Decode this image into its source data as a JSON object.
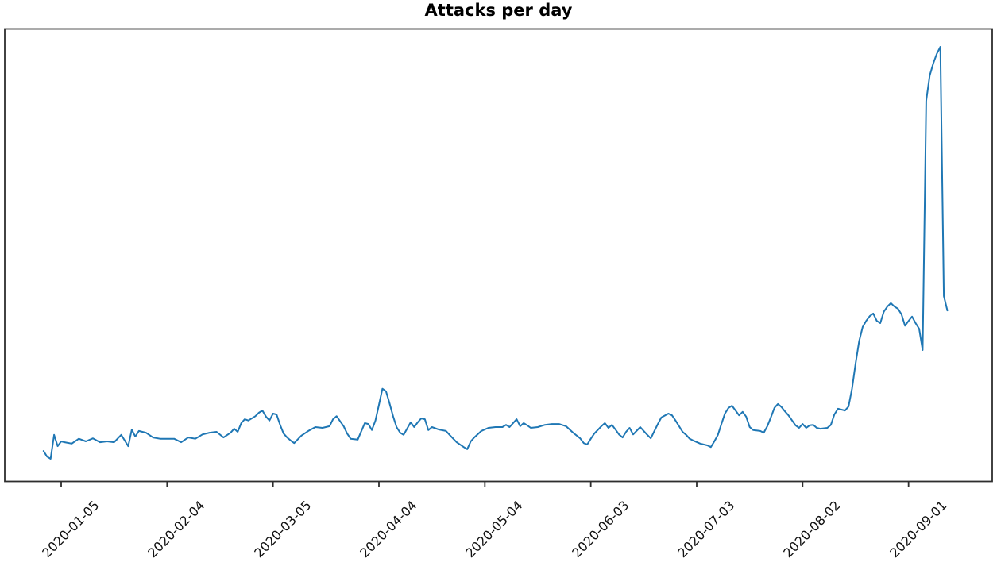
{
  "title": "Attacks per day",
  "chart_data": {
    "type": "line",
    "title": "Attacks per day",
    "xlabel": "",
    "ylabel": "",
    "grid": false,
    "legend": "none",
    "line_color": "#1f77b4",
    "axis_color": "#2e2e2e",
    "x_ticks": [
      "2020-01-05",
      "2020-02-04",
      "2020-03-05",
      "2020-04-04",
      "2020-05-04",
      "2020-06-03",
      "2020-07-03",
      "2020-08-02",
      "2020-09-01"
    ],
    "y_ticks": [],
    "ylim": [
      0,
      105
    ],
    "xlim": [
      "2019-12-19",
      "2020-09-24"
    ],
    "x_tick_rotation_deg": 45,
    "values_unit": "relative (y-axis unlabeled, peak = 100)",
    "dates": [
      "2019-12-31",
      "2020-01-01",
      "2020-01-02",
      "2020-01-03",
      "2020-01-04",
      "2020-01-05",
      "2020-01-06",
      "2020-01-08",
      "2020-01-10",
      "2020-01-12",
      "2020-01-14",
      "2020-01-16",
      "2020-01-18",
      "2020-01-20",
      "2020-01-22",
      "2020-01-23",
      "2020-01-24",
      "2020-01-25",
      "2020-01-26",
      "2020-01-27",
      "2020-01-29",
      "2020-01-31",
      "2020-02-02",
      "2020-02-04",
      "2020-02-06",
      "2020-02-08",
      "2020-02-10",
      "2020-02-12",
      "2020-02-14",
      "2020-02-16",
      "2020-02-18",
      "2020-02-20",
      "2020-02-22",
      "2020-02-23",
      "2020-02-24",
      "2020-02-25",
      "2020-02-26",
      "2020-02-27",
      "2020-02-29",
      "2020-03-01",
      "2020-03-02",
      "2020-03-03",
      "2020-03-04",
      "2020-03-05",
      "2020-03-06",
      "2020-03-07",
      "2020-03-08",
      "2020-03-09",
      "2020-03-10",
      "2020-03-11",
      "2020-03-13",
      "2020-03-15",
      "2020-03-17",
      "2020-03-19",
      "2020-03-21",
      "2020-03-22",
      "2020-03-23",
      "2020-03-25",
      "2020-03-26",
      "2020-03-27",
      "2020-03-29",
      "2020-03-31",
      "2020-04-01",
      "2020-04-02",
      "2020-04-03",
      "2020-04-04",
      "2020-04-05",
      "2020-04-06",
      "2020-04-07",
      "2020-04-08",
      "2020-04-09",
      "2020-04-10",
      "2020-04-11",
      "2020-04-13",
      "2020-04-14",
      "2020-04-15",
      "2020-04-16",
      "2020-04-17",
      "2020-04-18",
      "2020-04-19",
      "2020-04-21",
      "2020-04-23",
      "2020-04-24",
      "2020-04-26",
      "2020-04-28",
      "2020-04-29",
      "2020-04-30",
      "2020-05-01",
      "2020-05-03",
      "2020-05-05",
      "2020-05-07",
      "2020-05-09",
      "2020-05-10",
      "2020-05-11",
      "2020-05-13",
      "2020-05-14",
      "2020-05-15",
      "2020-05-16",
      "2020-05-17",
      "2020-05-19",
      "2020-05-21",
      "2020-05-23",
      "2020-05-25",
      "2020-05-27",
      "2020-05-29",
      "2020-05-31",
      "2020-06-01",
      "2020-06-02",
      "2020-06-03",
      "2020-06-04",
      "2020-06-06",
      "2020-06-07",
      "2020-06-08",
      "2020-06-09",
      "2020-06-10",
      "2020-06-11",
      "2020-06-12",
      "2020-06-13",
      "2020-06-14",
      "2020-06-15",
      "2020-06-17",
      "2020-06-18",
      "2020-06-19",
      "2020-06-20",
      "2020-06-22",
      "2020-06-23",
      "2020-06-25",
      "2020-06-26",
      "2020-06-27",
      "2020-06-28",
      "2020-06-29",
      "2020-06-30",
      "2020-07-01",
      "2020-07-02",
      "2020-07-04",
      "2020-07-06",
      "2020-07-07",
      "2020-07-08",
      "2020-07-09",
      "2020-07-10",
      "2020-07-11",
      "2020-07-12",
      "2020-07-13",
      "2020-07-14",
      "2020-07-15",
      "2020-07-16",
      "2020-07-17",
      "2020-07-18",
      "2020-07-19",
      "2020-07-21",
      "2020-07-22",
      "2020-07-23",
      "2020-07-24",
      "2020-07-25",
      "2020-07-26",
      "2020-07-27",
      "2020-07-28",
      "2020-07-29",
      "2020-07-31",
      "2020-08-01",
      "2020-08-02",
      "2020-08-03",
      "2020-08-04",
      "2020-08-05",
      "2020-08-06",
      "2020-08-07",
      "2020-08-09",
      "2020-08-10",
      "2020-08-11",
      "2020-08-12",
      "2020-08-13",
      "2020-08-14",
      "2020-08-15",
      "2020-08-16",
      "2020-08-17",
      "2020-08-18",
      "2020-08-19",
      "2020-08-20",
      "2020-08-21",
      "2020-08-22",
      "2020-08-23",
      "2020-08-24",
      "2020-08-25",
      "2020-08-26",
      "2020-08-27",
      "2020-08-28",
      "2020-08-29",
      "2020-08-30",
      "2020-08-31",
      "2020-09-01",
      "2020-09-02",
      "2020-09-03",
      "2020-09-04",
      "2020-09-05",
      "2020-09-06",
      "2020-09-07",
      "2020-09-08",
      "2020-09-09",
      "2020-09-10",
      "2020-09-11",
      "2020-09-12"
    ],
    "values": [
      7.1,
      5.8,
      5.3,
      10.8,
      8.2,
      9.3,
      9.1,
      8.8,
      9.9,
      9.3,
      10.0,
      9.1,
      9.3,
      9.1,
      10.8,
      9.5,
      8.2,
      12.0,
      10.4,
      11.7,
      11.3,
      10.2,
      9.9,
      9.9,
      9.9,
      9.1,
      10.2,
      9.9,
      10.9,
      11.3,
      11.5,
      10.2,
      11.3,
      12.2,
      11.5,
      13.5,
      14.4,
      14.1,
      15.1,
      15.9,
      16.4,
      15.0,
      14.1,
      15.7,
      15.5,
      13.1,
      11.1,
      10.2,
      9.5,
      8.9,
      10.6,
      11.7,
      12.6,
      12.4,
      12.8,
      14.4,
      15.1,
      12.8,
      11.1,
      9.9,
      9.7,
      13.5,
      13.3,
      11.9,
      14.1,
      17.7,
      21.4,
      20.8,
      18.1,
      15.1,
      12.6,
      11.3,
      10.8,
      13.7,
      12.6,
      13.7,
      14.6,
      14.4,
      11.9,
      12.6,
      12.0,
      11.7,
      10.8,
      9.1,
      8.0,
      7.5,
      9.3,
      10.2,
      11.7,
      12.4,
      12.6,
      12.6,
      13.1,
      12.6,
      14.4,
      12.8,
      13.5,
      13.0,
      12.4,
      12.6,
      13.1,
      13.3,
      13.3,
      12.8,
      11.3,
      10.0,
      8.9,
      8.6,
      9.9,
      11.1,
      12.8,
      13.5,
      12.4,
      13.1,
      12.0,
      10.9,
      10.2,
      11.5,
      12.4,
      10.9,
      12.6,
      11.7,
      10.8,
      10.0,
      13.3,
      14.8,
      15.7,
      15.3,
      14.1,
      12.8,
      11.5,
      10.8,
      9.9,
      9.5,
      8.8,
      8.4,
      8.0,
      9.3,
      10.8,
      13.3,
      15.7,
      17.0,
      17.5,
      16.4,
      15.3,
      16.1,
      15.0,
      12.6,
      11.9,
      11.7,
      11.3,
      12.8,
      14.8,
      17.0,
      17.9,
      17.2,
      16.2,
      15.3,
      13.0,
      12.4,
      13.3,
      12.4,
      13.0,
      13.1,
      12.4,
      12.2,
      12.4,
      13.1,
      15.5,
      16.8,
      16.6,
      16.4,
      17.3,
      21.4,
      27.2,
      32.3,
      35.6,
      37.0,
      38.1,
      38.7,
      37.0,
      36.5,
      39.1,
      40.3,
      41.1,
      40.3,
      39.8,
      38.5,
      35.9,
      37.0,
      38.0,
      36.5,
      35.2,
      30.3,
      87.6,
      93.4,
      96.2,
      98.4,
      100.0,
      42.7,
      39.4
    ]
  }
}
